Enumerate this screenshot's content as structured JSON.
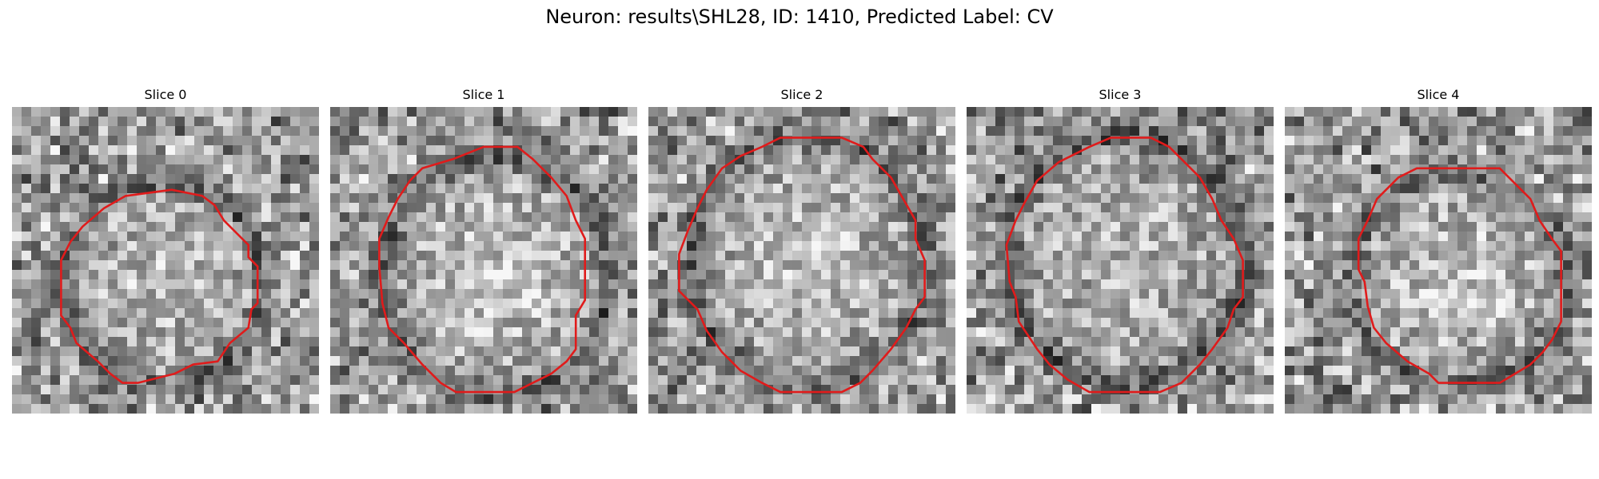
{
  "figure": {
    "title": "Neuron: results\\SHL28, ID: 1410, Predicted Label: CV"
  },
  "contour_color": "#e01b1b",
  "slices": [
    {
      "title": "Slice 0",
      "seed": 11,
      "center": [
        0.49,
        0.58
      ],
      "radius": [
        0.34,
        0.34
      ],
      "ring_dark": 0.55,
      "core_bright": 0.55,
      "contour": [
        [
          0.37,
          0.29
        ],
        [
          0.52,
          0.27
        ],
        [
          0.62,
          0.29
        ],
        [
          0.66,
          0.32
        ],
        [
          0.69,
          0.37
        ],
        [
          0.77,
          0.45
        ],
        [
          0.77,
          0.49
        ],
        [
          0.8,
          0.52
        ],
        [
          0.8,
          0.64
        ],
        [
          0.78,
          0.66
        ],
        [
          0.77,
          0.72
        ],
        [
          0.71,
          0.77
        ],
        [
          0.67,
          0.83
        ],
        [
          0.59,
          0.84
        ],
        [
          0.53,
          0.87
        ],
        [
          0.49,
          0.88
        ],
        [
          0.41,
          0.9
        ],
        [
          0.36,
          0.9
        ],
        [
          0.32,
          0.87
        ],
        [
          0.28,
          0.83
        ],
        [
          0.21,
          0.77
        ],
        [
          0.19,
          0.72
        ],
        [
          0.16,
          0.68
        ],
        [
          0.16,
          0.5
        ],
        [
          0.19,
          0.44
        ],
        [
          0.23,
          0.39
        ],
        [
          0.3,
          0.33
        ]
      ]
    },
    {
      "title": "Slice 1",
      "seed": 23,
      "center": [
        0.54,
        0.55
      ],
      "radius": [
        0.38,
        0.4
      ],
      "ring_dark": 0.6,
      "core_bright": 0.75,
      "contour": [
        [
          0.4,
          0.17
        ],
        [
          0.5,
          0.13
        ],
        [
          0.61,
          0.13
        ],
        [
          0.66,
          0.17
        ],
        [
          0.72,
          0.23
        ],
        [
          0.77,
          0.29
        ],
        [
          0.8,
          0.37
        ],
        [
          0.83,
          0.43
        ],
        [
          0.83,
          0.63
        ],
        [
          0.8,
          0.68
        ],
        [
          0.8,
          0.79
        ],
        [
          0.77,
          0.83
        ],
        [
          0.72,
          0.87
        ],
        [
          0.66,
          0.9
        ],
        [
          0.6,
          0.93
        ],
        [
          0.5,
          0.93
        ],
        [
          0.41,
          0.93
        ],
        [
          0.36,
          0.9
        ],
        [
          0.3,
          0.84
        ],
        [
          0.24,
          0.77
        ],
        [
          0.19,
          0.72
        ],
        [
          0.17,
          0.64
        ],
        [
          0.16,
          0.52
        ],
        [
          0.16,
          0.43
        ],
        [
          0.19,
          0.36
        ],
        [
          0.22,
          0.3
        ],
        [
          0.26,
          0.24
        ],
        [
          0.3,
          0.2
        ]
      ]
    },
    {
      "title": "Slice 2",
      "seed": 37,
      "center": [
        0.52,
        0.5
      ],
      "radius": [
        0.4,
        0.42
      ],
      "ring_dark": 0.55,
      "core_bright": 0.6,
      "contour": [
        [
          0.37,
          0.13
        ],
        [
          0.43,
          0.1
        ],
        [
          0.63,
          0.1
        ],
        [
          0.7,
          0.13
        ],
        [
          0.73,
          0.17
        ],
        [
          0.79,
          0.23
        ],
        [
          0.83,
          0.3
        ],
        [
          0.87,
          0.37
        ],
        [
          0.87,
          0.43
        ],
        [
          0.9,
          0.5
        ],
        [
          0.9,
          0.62
        ],
        [
          0.87,
          0.66
        ],
        [
          0.84,
          0.72
        ],
        [
          0.79,
          0.79
        ],
        [
          0.73,
          0.86
        ],
        [
          0.69,
          0.9
        ],
        [
          0.63,
          0.93
        ],
        [
          0.43,
          0.93
        ],
        [
          0.37,
          0.9
        ],
        [
          0.3,
          0.86
        ],
        [
          0.24,
          0.8
        ],
        [
          0.19,
          0.73
        ],
        [
          0.16,
          0.66
        ],
        [
          0.1,
          0.6
        ],
        [
          0.1,
          0.48
        ],
        [
          0.13,
          0.4
        ],
        [
          0.16,
          0.33
        ],
        [
          0.19,
          0.27
        ],
        [
          0.24,
          0.2
        ],
        [
          0.3,
          0.16
        ]
      ]
    },
    {
      "title": "Slice 3",
      "seed": 53,
      "center": [
        0.52,
        0.5
      ],
      "radius": [
        0.4,
        0.42
      ],
      "ring_dark": 0.65,
      "core_bright": 0.4,
      "contour": [
        [
          0.4,
          0.13
        ],
        [
          0.47,
          0.1
        ],
        [
          0.6,
          0.1
        ],
        [
          0.66,
          0.13
        ],
        [
          0.7,
          0.17
        ],
        [
          0.76,
          0.23
        ],
        [
          0.8,
          0.3
        ],
        [
          0.83,
          0.37
        ],
        [
          0.87,
          0.43
        ],
        [
          0.9,
          0.5
        ],
        [
          0.9,
          0.62
        ],
        [
          0.87,
          0.66
        ],
        [
          0.85,
          0.72
        ],
        [
          0.8,
          0.79
        ],
        [
          0.76,
          0.84
        ],
        [
          0.7,
          0.9
        ],
        [
          0.63,
          0.93
        ],
        [
          0.5,
          0.93
        ],
        [
          0.4,
          0.93
        ],
        [
          0.33,
          0.89
        ],
        [
          0.27,
          0.84
        ],
        [
          0.23,
          0.79
        ],
        [
          0.17,
          0.7
        ],
        [
          0.16,
          0.62
        ],
        [
          0.14,
          0.57
        ],
        [
          0.13,
          0.45
        ],
        [
          0.16,
          0.37
        ],
        [
          0.19,
          0.31
        ],
        [
          0.23,
          0.24
        ],
        [
          0.3,
          0.18
        ]
      ]
    },
    {
      "title": "Slice 4",
      "seed": 71,
      "center": [
        0.57,
        0.56
      ],
      "radius": [
        0.36,
        0.36
      ],
      "ring_dark": 0.5,
      "core_bright": 0.75,
      "contour": [
        [
          0.43,
          0.2
        ],
        [
          0.7,
          0.2
        ],
        [
          0.73,
          0.23
        ],
        [
          0.8,
          0.3
        ],
        [
          0.83,
          0.37
        ],
        [
          0.87,
          0.43
        ],
        [
          0.9,
          0.47
        ],
        [
          0.9,
          0.7
        ],
        [
          0.87,
          0.76
        ],
        [
          0.84,
          0.8
        ],
        [
          0.8,
          0.84
        ],
        [
          0.75,
          0.87
        ],
        [
          0.7,
          0.9
        ],
        [
          0.63,
          0.9
        ],
        [
          0.5,
          0.9
        ],
        [
          0.47,
          0.87
        ],
        [
          0.4,
          0.83
        ],
        [
          0.33,
          0.77
        ],
        [
          0.29,
          0.72
        ],
        [
          0.27,
          0.65
        ],
        [
          0.26,
          0.57
        ],
        [
          0.24,
          0.53
        ],
        [
          0.24,
          0.43
        ],
        [
          0.27,
          0.37
        ],
        [
          0.3,
          0.3
        ],
        [
          0.37,
          0.23
        ]
      ]
    }
  ]
}
